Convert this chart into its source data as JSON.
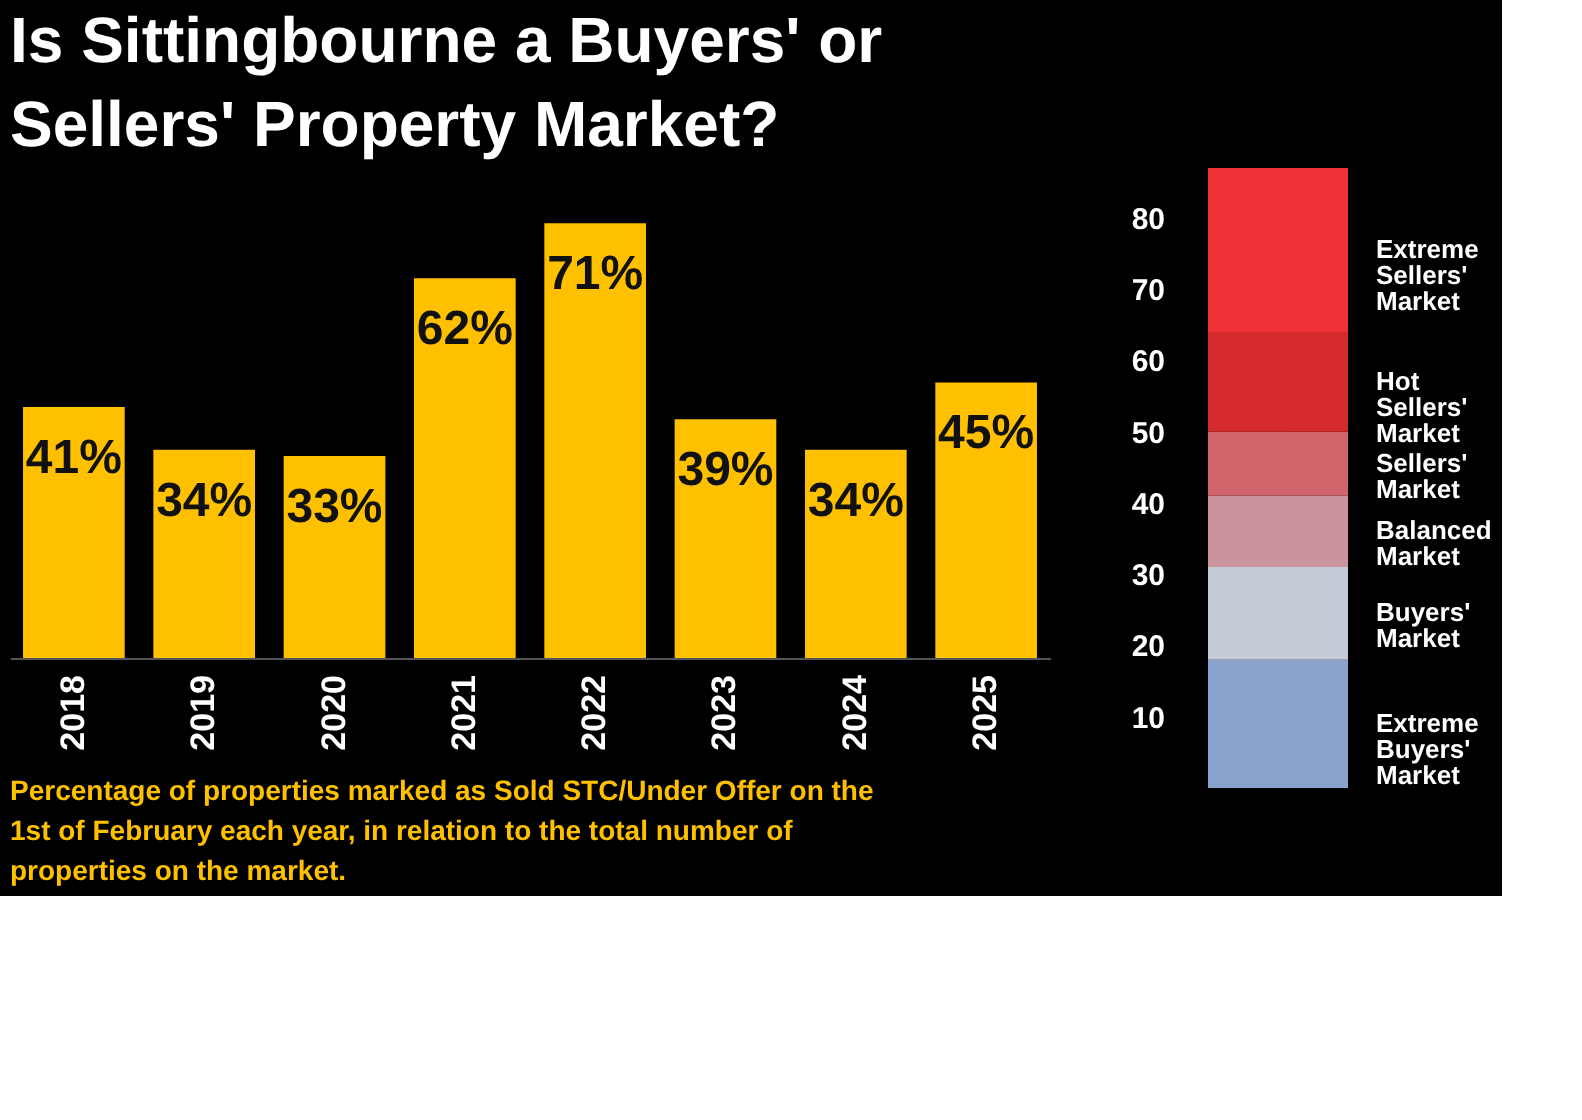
{
  "chart_data": [
    {
      "type": "bar",
      "title": "Is Sittingbourne a Buyers' or Sellers' Property Market?",
      "categories": [
        "2018",
        "2019",
        "2020",
        "2021",
        "2022",
        "2023",
        "2024",
        "2025"
      ],
      "values": [
        41,
        34,
        33,
        62,
        71,
        39,
        34,
        45
      ],
      "value_labels": [
        "41%",
        "34%",
        "33%",
        "62%",
        "71%",
        "39%",
        "34%",
        "45%"
      ],
      "color": "#ffc000",
      "grid": false,
      "tick_labels": "x",
      "annotations": [
        "Percentage of properties marked as Sold STC/Under Offer on the 1st of February each year, in relation to the total number of properties on the market."
      ]
    },
    {
      "type": "bar",
      "stacked": true,
      "categories": [
        null
      ],
      "ylim": [
        0,
        87
      ],
      "yticks": [
        10,
        20,
        30,
        40,
        50,
        60,
        70,
        80
      ],
      "tick_labels": "y",
      "series": [
        {
          "name": "Extreme Buyers' Market",
          "color": "#8aa3cd",
          "values": [
            18
          ]
        },
        {
          "name": "Buyers' Market",
          "color": "#c5cbd6",
          "values": [
            13
          ]
        },
        {
          "name": "Balanced Market",
          "color": "#c9949e",
          "values": [
            10
          ]
        },
        {
          "name": "Sellers' Market",
          "color": "#d2656b",
          "values": [
            9
          ]
        },
        {
          "name": "Hot Sellers' Market",
          "color": "#d52b2d",
          "values": [
            14
          ]
        },
        {
          "name": "Extreme Sellers' Market",
          "color": "#ee3235",
          "values": [
            23
          ]
        }
      ]
    }
  ]
}
